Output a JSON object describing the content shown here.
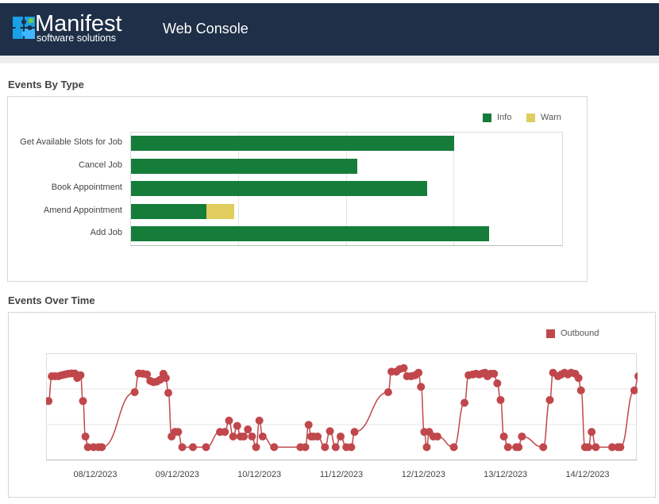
{
  "header": {
    "logo_word": "Manifest",
    "logo_sub": "software solutions",
    "title": "Web Console"
  },
  "sections": {
    "events_by_type": "Events By Type",
    "events_over_time": "Events Over Time"
  },
  "colors": {
    "header_bg": "#1e2f47",
    "info": "#167c3a",
    "warn": "#e0cd5e",
    "outbound": "#c0474b"
  },
  "chart_data": [
    {
      "type": "bar",
      "orientation": "horizontal",
      "stacked": true,
      "categories": [
        "Get Available Slots for Job",
        "Cancel Job",
        "Book Appointment",
        "Amend Appointment",
        "Add Job"
      ],
      "series": [
        {
          "name": "Info",
          "values": [
            30,
            21,
            27.5,
            7,
            33.2
          ]
        },
        {
          "name": "Warn",
          "values": [
            0,
            0,
            0,
            2.6,
            0
          ]
        }
      ],
      "xlim": [
        0,
        40
      ],
      "grid": true,
      "legend": "top-right"
    },
    {
      "type": "line",
      "x_tick_labels": [
        "08/12/2023",
        "09/12/2023",
        "10/12/2023",
        "11/12/2023",
        "12/12/2023",
        "13/12/2023",
        "14/12/2023"
      ],
      "xlim": [
        0,
        7.2
      ],
      "ylim": [
        0,
        3
      ],
      "grid": true,
      "legend": "top-right",
      "series": [
        {
          "name": "Outbound",
          "points": [
            [
              0.03,
              1.65
            ],
            [
              0.07,
              2.35
            ],
            [
              0.11,
              2.35
            ],
            [
              0.15,
              2.35
            ],
            [
              0.19,
              2.38
            ],
            [
              0.23,
              2.4
            ],
            [
              0.27,
              2.42
            ],
            [
              0.31,
              2.43
            ],
            [
              0.35,
              2.43
            ],
            [
              0.38,
              2.3
            ],
            [
              0.42,
              2.38
            ],
            [
              0.45,
              1.65
            ],
            [
              0.48,
              0.65
            ],
            [
              0.51,
              0.35
            ],
            [
              0.58,
              0.35
            ],
            [
              0.64,
              0.35
            ],
            [
              0.68,
              0.35
            ],
            [
              1.08,
              1.9
            ],
            [
              1.13,
              2.43
            ],
            [
              1.18,
              2.42
            ],
            [
              1.23,
              2.4
            ],
            [
              1.27,
              2.22
            ],
            [
              1.31,
              2.18
            ],
            [
              1.35,
              2.2
            ],
            [
              1.39,
              2.25
            ],
            [
              1.43,
              2.42
            ],
            [
              1.46,
              2.3
            ],
            [
              1.49,
              1.88
            ],
            [
              1.53,
              0.65
            ],
            [
              1.57,
              0.78
            ],
            [
              1.61,
              0.78
            ],
            [
              1.66,
              0.35
            ],
            [
              1.79,
              0.35
            ],
            [
              1.95,
              0.35
            ],
            [
              2.12,
              0.78
            ],
            [
              2.18,
              0.78
            ],
            [
              2.23,
              1.1
            ],
            [
              2.28,
              0.65
            ],
            [
              2.33,
              0.95
            ],
            [
              2.37,
              0.65
            ],
            [
              2.41,
              0.65
            ],
            [
              2.46,
              0.85
            ],
            [
              2.51,
              0.65
            ],
            [
              2.56,
              0.35
            ],
            [
              2.6,
              1.1
            ],
            [
              2.64,
              0.65
            ],
            [
              2.78,
              0.35
            ],
            [
              3.1,
              0.35
            ],
            [
              3.16,
              0.35
            ],
            [
              3.2,
              0.98
            ],
            [
              3.23,
              0.65
            ],
            [
              3.26,
              0.65
            ],
            [
              3.31,
              0.65
            ],
            [
              3.4,
              0.35
            ],
            [
              3.46,
              0.8
            ],
            [
              3.53,
              0.35
            ],
            [
              3.59,
              0.65
            ],
            [
              3.66,
              0.35
            ],
            [
              3.72,
              0.35
            ],
            [
              3.76,
              0.78
            ],
            [
              4.17,
              1.9
            ],
            [
              4.21,
              2.48
            ],
            [
              4.27,
              2.48
            ],
            [
              4.31,
              2.55
            ],
            [
              4.36,
              2.58
            ],
            [
              4.4,
              2.35
            ],
            [
              4.45,
              2.35
            ],
            [
              4.5,
              2.38
            ],
            [
              4.54,
              2.45
            ],
            [
              4.57,
              2.05
            ],
            [
              4.61,
              0.78
            ],
            [
              4.64,
              0.35
            ],
            [
              4.67,
              0.78
            ],
            [
              4.72,
              0.65
            ],
            [
              4.77,
              0.65
            ],
            [
              4.97,
              0.35
            ],
            [
              5.1,
              1.6
            ],
            [
              5.15,
              2.38
            ],
            [
              5.2,
              2.4
            ],
            [
              5.24,
              2.42
            ],
            [
              5.28,
              2.4
            ],
            [
              5.32,
              2.43
            ],
            [
              5.35,
              2.45
            ],
            [
              5.38,
              2.35
            ],
            [
              5.42,
              2.42
            ],
            [
              5.46,
              2.42
            ],
            [
              5.5,
              2.15
            ],
            [
              5.54,
              1.68
            ],
            [
              5.58,
              0.65
            ],
            [
              5.63,
              0.35
            ],
            [
              5.73,
              0.35
            ],
            [
              5.8,
              0.65
            ],
            [
              5.76,
              0.35
            ],
            [
              6.06,
              0.35
            ],
            [
              6.14,
              1.68
            ],
            [
              6.18,
              2.45
            ],
            [
              6.24,
              2.35
            ],
            [
              6.28,
              2.4
            ],
            [
              6.32,
              2.45
            ],
            [
              6.36,
              2.4
            ],
            [
              6.4,
              2.45
            ],
            [
              6.45,
              2.42
            ],
            [
              6.49,
              2.3
            ],
            [
              6.52,
              1.95
            ],
            [
              6.57,
              0.35
            ],
            [
              6.61,
              0.35
            ],
            [
              6.65,
              0.78
            ],
            [
              6.7,
              0.35
            ],
            [
              6.9,
              0.35
            ],
            [
              6.97,
              0.35
            ],
            [
              7.0,
              0.35
            ],
            [
              7.17,
              1.95
            ],
            [
              7.22,
              2.35
            ],
            [
              7.27,
              2.38
            ],
            [
              7.32,
              2.1
            ]
          ]
        }
      ]
    }
  ]
}
